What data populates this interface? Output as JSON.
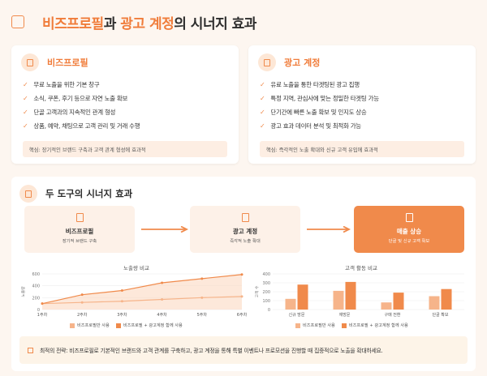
{
  "header": {
    "title_hl1": "비즈프로필",
    "title_mid": "과 ",
    "title_hl2": "광고 계정",
    "title_end": "의 시너지 효과"
  },
  "left_card": {
    "title": "비즈프로필",
    "items": [
      "무료 노출을 위한 기본 창구",
      "소식, 쿠폰, 후기 등으로 자연 노출 확보",
      "단골 고객과의 지속적인 관계 형성",
      "상품, 예약, 채팅으로 고객 관리 및 거래 수행"
    ],
    "note": "핵심: 장기적인 브랜드 구축과 고객 관계 형성에 효과적"
  },
  "right_card": {
    "title": "광고 계정",
    "items": [
      "유료 노출을 통한 타겟팅된 광고 집행",
      "특정 지역, 관심사에 맞는 정밀한 타겟팅 가능",
      "단기간에 빠른 노출 확보 및 인지도 상승",
      "광고 효과 데이터 분석 및 최적화 가능"
    ],
    "note": "핵심: 즉각적인 노출 확대와 신규 고객 유입에 효과적"
  },
  "synergy": {
    "title": "두 도구의 시너지 효과",
    "flow": [
      {
        "title": "비즈프로필",
        "sub": "장기적 브랜드 구축"
      },
      {
        "title": "광고 계정",
        "sub": "즉각적 노출 확대"
      },
      {
        "title": "매출 상승",
        "sub": "단골 및 신규 고객 확보"
      }
    ],
    "tip": "최적의 전략: 비즈프로필로 기본적인 브랜드와 고객 관계를 구축하고, 광고 계정을 통해 특별 이벤트나 프로모션을 진행할 때 집중적으로 노출을 확대하세요."
  },
  "colors": {
    "accent": "#f08a4b",
    "accent_light": "#f6b48a",
    "bg": "#fdf6f0"
  },
  "chart_data": [
    {
      "type": "line",
      "title": "노출량 비교",
      "ylabel": "노출량",
      "x": [
        "1주차",
        "2주차",
        "3주차",
        "4주차",
        "5주차",
        "6주차"
      ],
      "ylim": [
        0,
        600
      ],
      "yticks": [
        0,
        200,
        400,
        600
      ],
      "series": [
        {
          "name": "비즈프로필만 사용",
          "values": [
            100,
            120,
            140,
            170,
            200,
            220
          ]
        },
        {
          "name": "비즈프로필 + 광고계정 함께 사용",
          "values": [
            100,
            250,
            320,
            450,
            520,
            590
          ]
        }
      ]
    },
    {
      "type": "bar",
      "title": "고객 활동 비교",
      "ylabel": "고객 수",
      "categories": [
        "신규 방문",
        "재방문",
        "구매 전환",
        "단골 확보"
      ],
      "ylim": [
        0,
        400
      ],
      "yticks": [
        0,
        100,
        200,
        300,
        400
      ],
      "series": [
        {
          "name": "비즈프로필만 사용",
          "values": [
            120,
            210,
            80,
            150
          ]
        },
        {
          "name": "비즈프로필 + 광고계정 함께 사용",
          "values": [
            280,
            310,
            190,
            230
          ]
        }
      ]
    }
  ]
}
